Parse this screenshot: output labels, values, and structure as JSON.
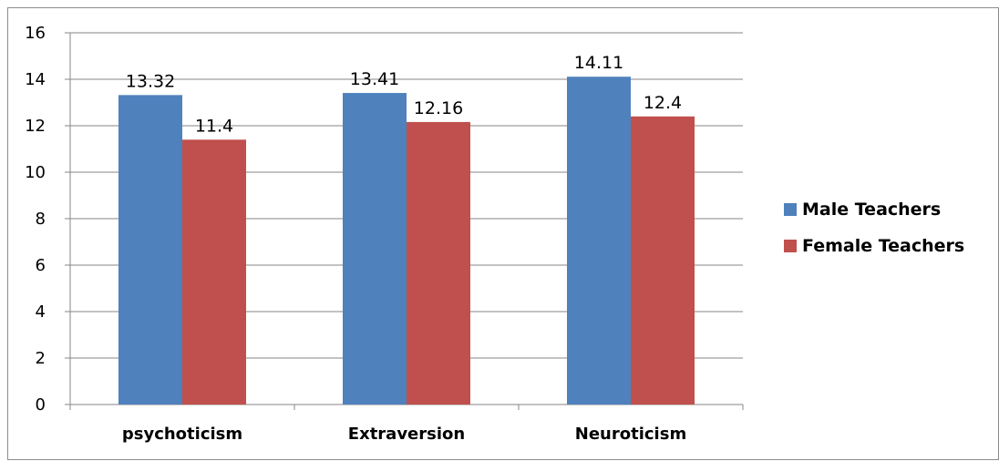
{
  "chart_data": {
    "type": "bar",
    "categories": [
      "psychoticism",
      "Extraversion",
      "Neuroticism"
    ],
    "series": [
      {
        "name": "Male Teachers",
        "values": [
          13.32,
          13.41,
          14.11
        ],
        "color": "#4F81BD"
      },
      {
        "name": "Female Teachers",
        "values": [
          11.4,
          12.16,
          12.4
        ],
        "color": "#C0504D"
      }
    ],
    "data_labels": [
      [
        "13.32",
        "13.41",
        "14.11"
      ],
      [
        "11.4",
        "12.16",
        "12.4"
      ]
    ],
    "yticks": [
      "0",
      "2",
      "4",
      "6",
      "8",
      "10",
      "12",
      "14",
      "16"
    ],
    "ylim": [
      0,
      16
    ],
    "grid": true,
    "legend_position": "right",
    "title": "",
    "xlabel": "",
    "ylabel": ""
  }
}
